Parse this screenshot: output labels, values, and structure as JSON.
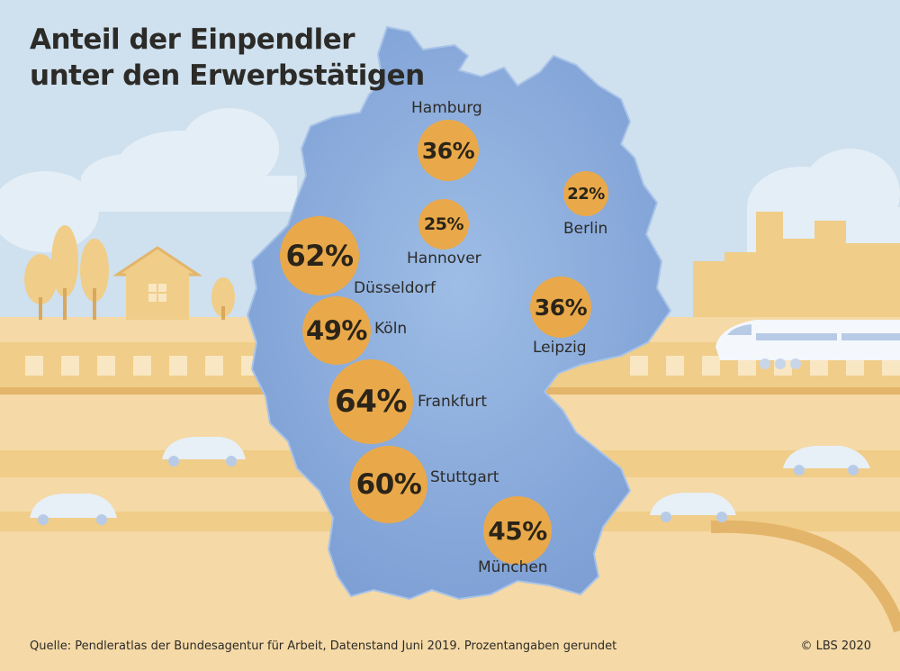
{
  "title": {
    "line1": "Anteil der Einpendler",
    "line2": "unter den Erwerbstätigen"
  },
  "cities": [
    {
      "name": "Hamburg",
      "value": "36%"
    },
    {
      "name": "Berlin",
      "value": "22%"
    },
    {
      "name": "Hannover",
      "value": "25%"
    },
    {
      "name": "Düsseldorf",
      "value": "62%"
    },
    {
      "name": "Leipzig",
      "value": "36%"
    },
    {
      "name": "Köln",
      "value": "49%"
    },
    {
      "name": "Frankfurt",
      "value": "64%"
    },
    {
      "name": "Stuttgart",
      "value": "60%"
    },
    {
      "name": "München",
      "value": "45%"
    }
  ],
  "footer": {
    "source": "Quelle: Pendleratlas der Bundesagentur für Arbeit, Datenstand Juni 2019. Prozentangaben gerundet",
    "copyright": "© LBS 2020"
  },
  "colors": {
    "sky": "#cfe0ee",
    "ground": "#f5d9a6",
    "map": "#8fb0df",
    "bubble": "#e9a94a"
  }
}
